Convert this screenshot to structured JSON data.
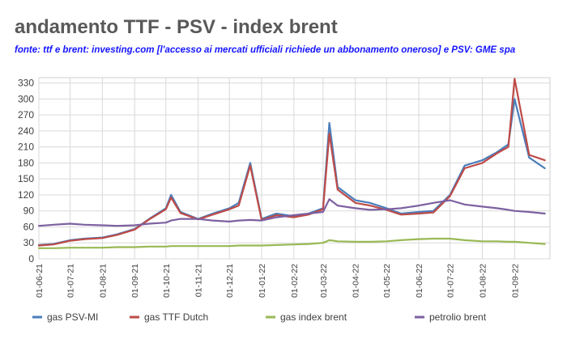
{
  "header": {
    "title": "andamento TTF - PSV - index brent",
    "subtitle": "fonte: ttf e brent: investing.com [l'accesso ai mercati ufficiali richiede un abbonamento oneroso] e PSV: GME spa"
  },
  "chart_data": {
    "type": "line",
    "title": "andamento TTF - PSV - index brent",
    "ylim": [
      0,
      340
    ],
    "yticks": [
      0,
      30,
      60,
      90,
      120,
      150,
      180,
      210,
      240,
      270,
      300,
      330
    ],
    "grid": true,
    "legend_position": "bottom",
    "x_tick_labels": [
      "01-06-21",
      "01-07-21",
      "01-08-21",
      "01-09-21",
      "01-10-21",
      "01-11-21",
      "01-12-21",
      "01-01-22",
      "01-02-22",
      "01-03-22",
      "01-04-22",
      "01-05-22",
      "01-06-22",
      "01-07-22",
      "01-08-22",
      "01-09-22"
    ],
    "x": [
      "01-06-21",
      "15-06-21",
      "01-07-21",
      "15-07-21",
      "01-08-21",
      "15-08-21",
      "01-09-21",
      "15-09-21",
      "01-10-21",
      "06-10-21",
      "15-10-21",
      "01-11-21",
      "15-11-21",
      "01-12-21",
      "10-12-21",
      "21-12-21",
      "01-01-22",
      "15-01-22",
      "01-02-22",
      "15-02-22",
      "01-03-22",
      "07-03-22",
      "15-03-22",
      "01-04-22",
      "15-04-22",
      "01-05-22",
      "15-05-22",
      "01-06-22",
      "15-06-22",
      "01-07-22",
      "15-07-22",
      "01-08-22",
      "15-08-22",
      "26-08-22",
      "01-09-22",
      "15-09-22",
      "30-09-22"
    ],
    "series": [
      {
        "name": "gas PSV-MI",
        "color": "#4a7ebb",
        "values": [
          26,
          28,
          35,
          38,
          40,
          46,
          56,
          75,
          95,
          120,
          88,
          75,
          85,
          95,
          105,
          180,
          75,
          85,
          80,
          85,
          95,
          255,
          135,
          110,
          105,
          95,
          85,
          88,
          90,
          120,
          175,
          185,
          200,
          215,
          300,
          190,
          170
        ]
      },
      {
        "name": "gas TTF Dutch",
        "color": "#be4b48",
        "values": [
          25,
          27,
          34,
          37,
          39,
          45,
          55,
          74,
          93,
          115,
          86,
          74,
          83,
          93,
          100,
          175,
          73,
          82,
          78,
          83,
          93,
          235,
          130,
          105,
          100,
          92,
          83,
          85,
          87,
          118,
          170,
          180,
          198,
          210,
          338,
          195,
          185
        ]
      },
      {
        "name": "gas index brent",
        "color": "#98b954",
        "values": [
          20,
          20,
          21,
          21,
          21,
          22,
          22,
          23,
          23,
          24,
          24,
          24,
          24,
          24,
          25,
          25,
          25,
          26,
          27,
          28,
          30,
          35,
          33,
          32,
          32,
          33,
          35,
          37,
          38,
          38,
          35,
          33,
          33,
          32,
          32,
          30,
          28
        ]
      },
      {
        "name": "petrolio brent",
        "color": "#7d60a0",
        "values": [
          62,
          64,
          66,
          64,
          63,
          62,
          63,
          66,
          68,
          72,
          75,
          75,
          72,
          70,
          72,
          73,
          72,
          78,
          82,
          85,
          88,
          112,
          100,
          95,
          92,
          93,
          95,
          100,
          105,
          110,
          102,
          98,
          95,
          92,
          90,
          88,
          85
        ]
      }
    ]
  }
}
